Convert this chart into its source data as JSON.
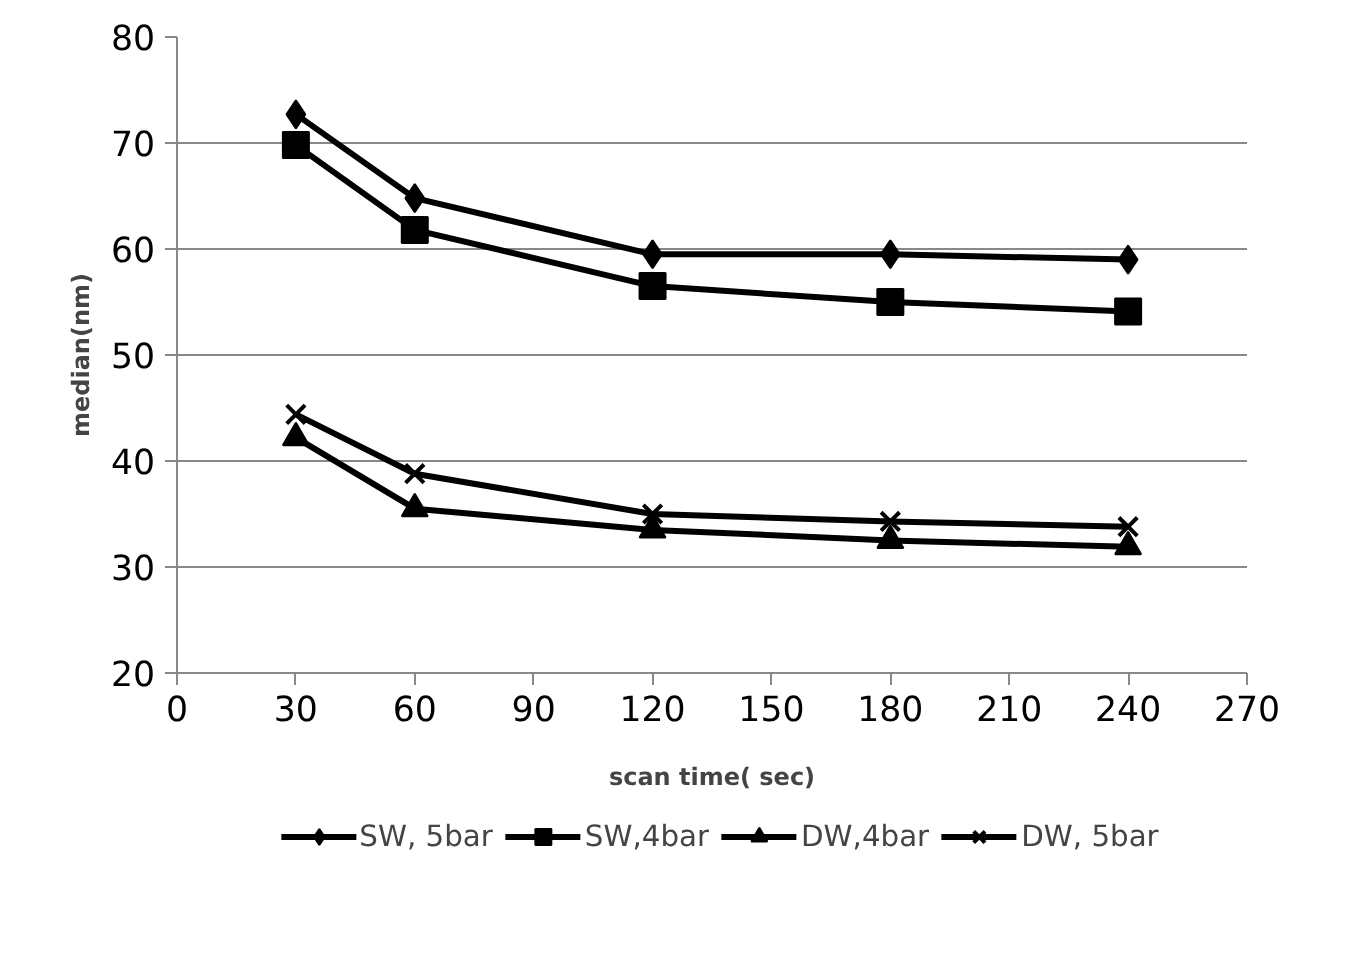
{
  "chart_data": {
    "type": "line",
    "xlabel": "scan time( sec)",
    "ylabel": "median(nm)",
    "x": [
      30,
      60,
      120,
      180,
      240
    ],
    "xlim": [
      0,
      270
    ],
    "xticks": [
      0,
      30,
      60,
      90,
      120,
      150,
      180,
      210,
      240,
      270
    ],
    "ylim": [
      20,
      80
    ],
    "yticks": [
      20,
      30,
      40,
      50,
      60,
      70,
      80
    ],
    "grid": "y",
    "legend": "bottom",
    "line_style": "solid",
    "series": [
      {
        "name": "SW, 5bar",
        "color": "#000000",
        "marker": "diamond",
        "values": [
          72.7,
          64.8,
          59.5,
          59.5,
          59.0
        ]
      },
      {
        "name": "SW,4bar",
        "color": "#000000",
        "marker": "square",
        "values": [
          69.8,
          61.8,
          56.5,
          55.0,
          54.1
        ]
      },
      {
        "name": "DW,4bar",
        "color": "#000000",
        "marker": "triangle",
        "values": [
          42.2,
          35.5,
          33.5,
          32.5,
          31.9
        ]
      },
      {
        "name": "DW, 5bar",
        "color": "#000000",
        "marker": "x",
        "values": [
          44.4,
          38.8,
          35.0,
          34.3,
          33.8
        ]
      }
    ]
  }
}
